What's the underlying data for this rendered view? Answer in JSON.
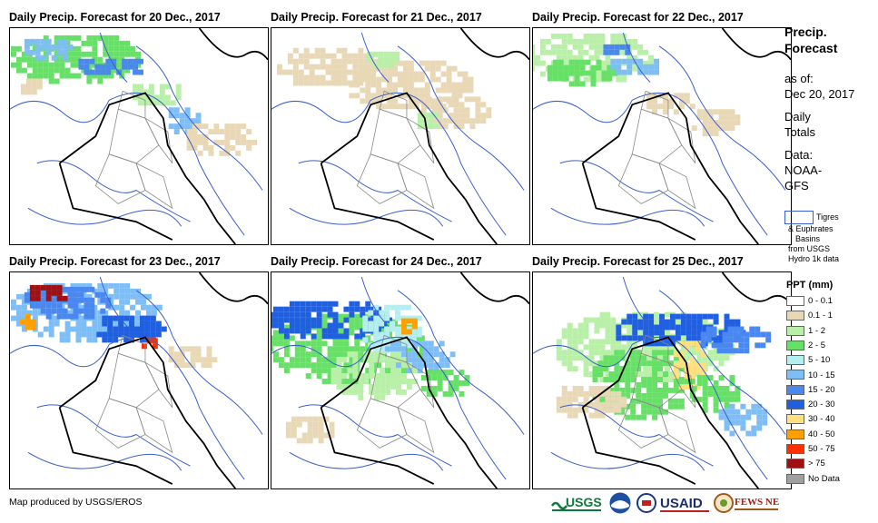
{
  "panels": [
    {
      "title": "Daily Precip. Forecast for 20 Dec., 2017"
    },
    {
      "title": "Daily Precip. Forecast for 21 Dec., 2017"
    },
    {
      "title": "Daily Precip. Forecast for 22 Dec., 2017"
    },
    {
      "title": "Daily Precip. Forecast for 23 Dec., 2017"
    },
    {
      "title": "Daily Precip. Forecast for 24 Dec., 2017"
    },
    {
      "title": "Daily Precip. Forecast for 25 Dec., 2017"
    }
  ],
  "sidebar": {
    "heading_line1": "Precip.",
    "heading_line2": "Forecast",
    "asof_line1": "as of:",
    "asof_line2": "Dec 20, 2017",
    "daily_line1": "Daily",
    "daily_line2": "Totals",
    "data_line1": "Data:",
    "data_line2": "NOAA-",
    "data_line3": "GFS"
  },
  "basin_legend": {
    "line1": "Tigres",
    "line2": "& Euphrates",
    "line3": "Basins",
    "line4": "from USGS",
    "line5": "Hydro 1k data"
  },
  "legend": {
    "title": "PPT (mm)",
    "items": [
      {
        "label": "0 - 0.1",
        "color": "#ffffff"
      },
      {
        "label": "0.1 - 1",
        "color": "#e9d8b6"
      },
      {
        "label": "1 - 2",
        "color": "#b9f0a8"
      },
      {
        "label": "2 - 5",
        "color": "#66e066"
      },
      {
        "label": "5 - 10",
        "color": "#b4eef0"
      },
      {
        "label": "10 - 15",
        "color": "#7fbef5"
      },
      {
        "label": "15 - 20",
        "color": "#4a88f0"
      },
      {
        "label": "20 - 30",
        "color": "#2060e0"
      },
      {
        "label": "30 - 40",
        "color": "#ffe080"
      },
      {
        "label": "40 - 50",
        "color": "#ffa000"
      },
      {
        "label": "50 - 75",
        "color": "#ff3000"
      },
      {
        "label": "> 75",
        "color": "#a01010"
      },
      {
        "label": "No Data",
        "color": "#a0a0a0"
      }
    ]
  },
  "credit": "Map produced by USGS/EROS",
  "logos": {
    "usgs": "USGS",
    "usaid": "USAID",
    "fewsnet": "FEWS NET"
  }
}
